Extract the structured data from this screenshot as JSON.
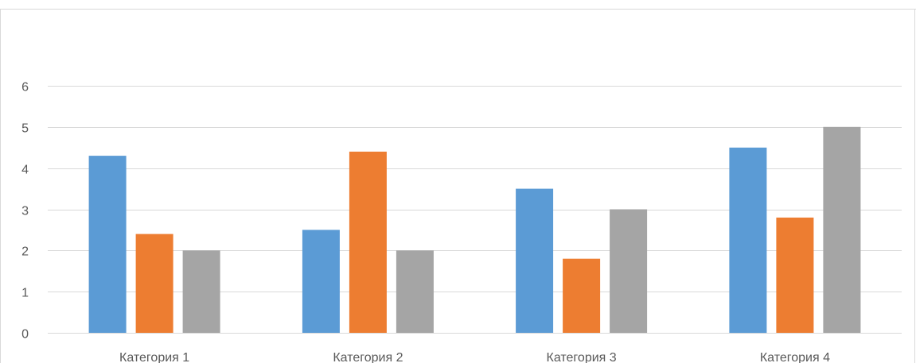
{
  "chart_data": {
    "type": "bar",
    "title": "",
    "xlabel": "",
    "ylabel": "",
    "categories": [
      "Категория 1",
      "Категория 2",
      "Категория 3",
      "Категория 4"
    ],
    "series": [
      {
        "color": "#5B9BD5",
        "values": [
          4.3,
          2.5,
          3.5,
          4.5
        ]
      },
      {
        "color": "#ED7D31",
        "values": [
          2.4,
          4.4,
          1.8,
          2.8
        ]
      },
      {
        "color": "#A5A5A5",
        "values": [
          2.0,
          2.0,
          3.0,
          5.0
        ]
      }
    ],
    "ylim": [
      0,
      6
    ],
    "yticks": [
      "0",
      "1",
      "2",
      "3",
      "4",
      "5",
      "6"
    ],
    "grid": true,
    "gridline_color": "#d9d9d9",
    "legend": "none"
  }
}
